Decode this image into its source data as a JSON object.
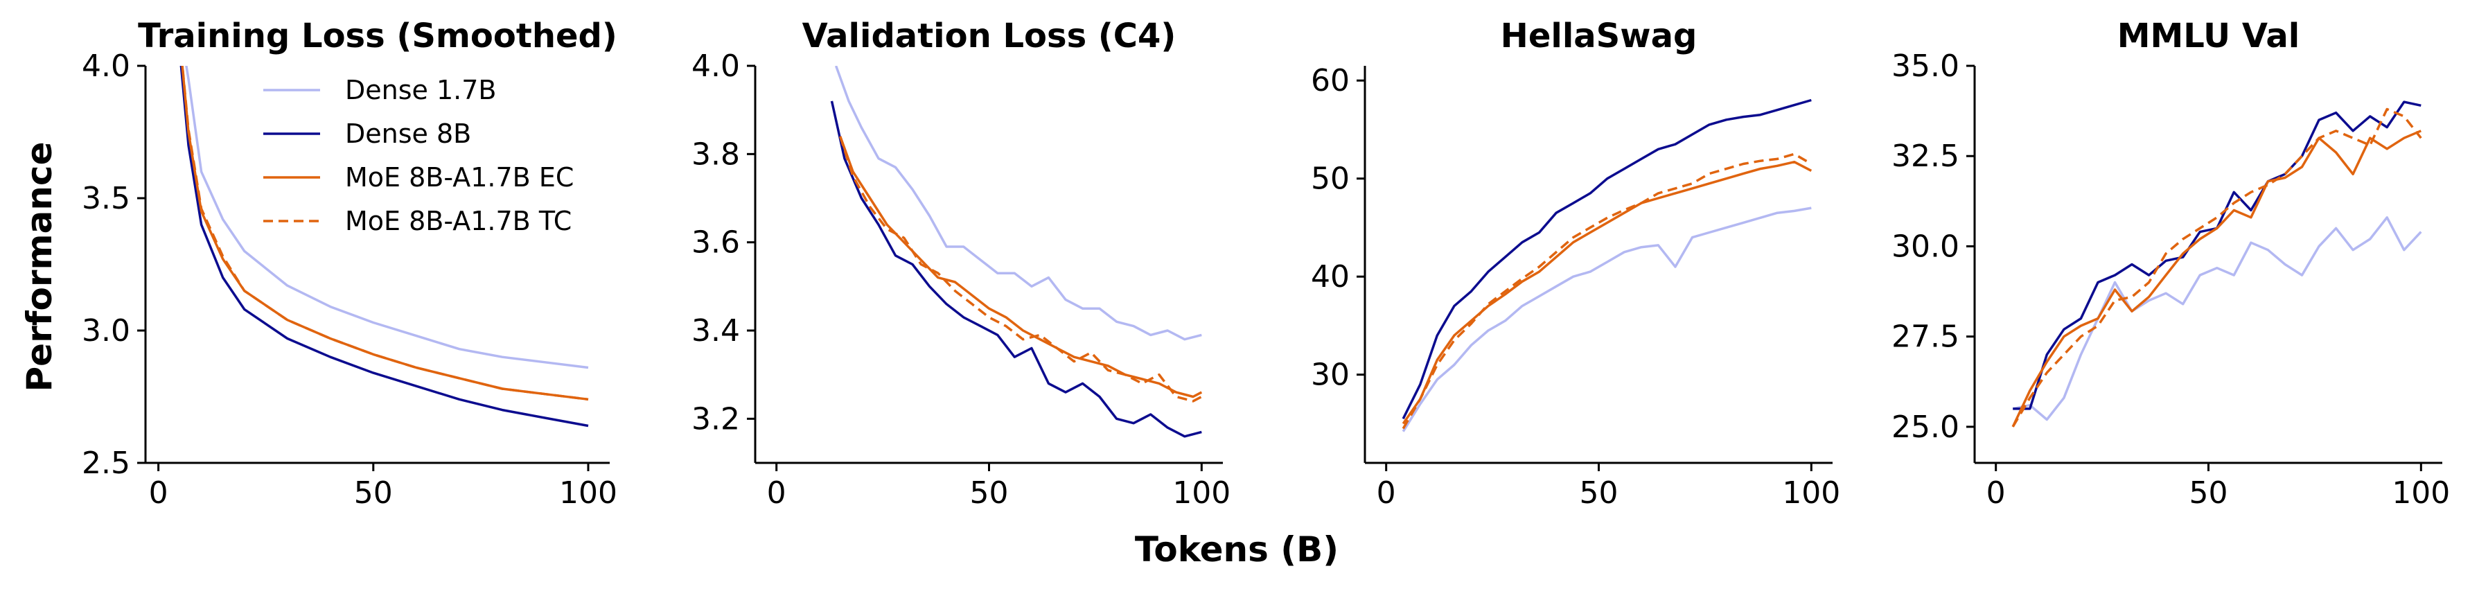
{
  "figure": {
    "ylabel": "Performance",
    "xlabel": "Tokens (B)"
  },
  "legend": {
    "placement": "upper-right of first panel",
    "entries": [
      {
        "label": "Dense 1.7B",
        "color": "#b3b8f2",
        "style": "solid"
      },
      {
        "label": "Dense 8B",
        "color": "#0c0c8f",
        "style": "solid"
      },
      {
        "label": "MoE 8B-A1.7B EC",
        "color": "#e0640f",
        "style": "solid"
      },
      {
        "label": "MoE 8B-A1.7B TC",
        "color": "#e0640f",
        "style": "dashed"
      }
    ]
  },
  "chart_data": [
    {
      "type": "line",
      "title": "Training Loss (Smoothed)",
      "xlim": [
        -3,
        105
      ],
      "ylim": [
        2.5,
        4.0
      ],
      "xticks": [
        "0",
        "50",
        "100"
      ],
      "xtick_values": [
        0,
        50,
        100
      ],
      "yticks": [
        "2.5",
        "3.0",
        "3.5",
        "4.0"
      ],
      "ytick_values": [
        2.5,
        3.0,
        3.5,
        4.0
      ],
      "grid": false,
      "series": [
        {
          "name": "Dense 1.7B",
          "x": [
            5,
            7,
            10,
            15,
            20,
            30,
            40,
            50,
            60,
            70,
            80,
            90,
            100
          ],
          "y": [
            4.15,
            3.95,
            3.6,
            3.42,
            3.3,
            3.17,
            3.09,
            3.03,
            2.98,
            2.93,
            2.9,
            2.88,
            2.86
          ]
        },
        {
          "name": "Dense 8B",
          "x": [
            5,
            7,
            10,
            15,
            20,
            30,
            40,
            50,
            60,
            70,
            80,
            90,
            100
          ],
          "y": [
            4.05,
            3.7,
            3.4,
            3.2,
            3.08,
            2.97,
            2.9,
            2.84,
            2.79,
            2.74,
            2.7,
            2.67,
            2.64
          ]
        },
        {
          "name": "MoE 8B-A1.7B EC",
          "x": [
            5,
            7,
            10,
            15,
            20,
            30,
            40,
            50,
            60,
            70,
            80,
            90,
            100
          ],
          "y": [
            4.1,
            3.75,
            3.45,
            3.27,
            3.15,
            3.04,
            2.97,
            2.91,
            2.86,
            2.82,
            2.78,
            2.76,
            2.74
          ]
        },
        {
          "name": "MoE 8B-A1.7B TC",
          "x": [
            5,
            7,
            10,
            15,
            20,
            30,
            40,
            50,
            60,
            70,
            80,
            90,
            100
          ],
          "y": [
            4.1,
            3.76,
            3.46,
            3.28,
            3.15,
            3.04,
            2.97,
            2.91,
            2.86,
            2.82,
            2.78,
            2.76,
            2.74
          ]
        }
      ]
    },
    {
      "type": "line",
      "title": "Validation Loss (C4)",
      "xlim": [
        -5,
        105
      ],
      "ylim": [
        3.1,
        4.0
      ],
      "xticks": [
        "0",
        "50",
        "100"
      ],
      "xtick_values": [
        0,
        50,
        100
      ],
      "yticks": [
        "3.2",
        "3.4",
        "3.6",
        "3.8",
        "4.0"
      ],
      "ytick_values": [
        3.2,
        3.4,
        3.6,
        3.8,
        4.0
      ],
      "grid": false,
      "series": [
        {
          "name": "Dense 1.7B",
          "x": [
            14,
            17,
            20,
            24,
            28,
            32,
            36,
            40,
            44,
            48,
            52,
            56,
            60,
            64,
            68,
            72,
            76,
            80,
            84,
            88,
            92,
            96,
            100
          ],
          "y": [
            4.0,
            3.92,
            3.86,
            3.79,
            3.77,
            3.72,
            3.66,
            3.59,
            3.59,
            3.56,
            3.53,
            3.53,
            3.5,
            3.52,
            3.47,
            3.45,
            3.45,
            3.42,
            3.41,
            3.39,
            3.4,
            3.38,
            3.39
          ]
        },
        {
          "name": "Dense 8B",
          "x": [
            13,
            16,
            20,
            24,
            28,
            32,
            36,
            40,
            44,
            48,
            52,
            56,
            60,
            64,
            68,
            72,
            76,
            80,
            84,
            88,
            92,
            96,
            100
          ],
          "y": [
            3.92,
            3.79,
            3.7,
            3.64,
            3.57,
            3.55,
            3.5,
            3.46,
            3.43,
            3.41,
            3.39,
            3.34,
            3.36,
            3.28,
            3.26,
            3.28,
            3.25,
            3.2,
            3.19,
            3.21,
            3.18,
            3.16,
            3.17
          ]
        },
        {
          "name": "MoE 8B-A1.7B EC",
          "x": [
            15,
            18,
            22,
            26,
            30,
            34,
            38,
            42,
            46,
            50,
            54,
            58,
            62,
            66,
            70,
            74,
            78,
            82,
            86,
            90,
            94,
            98,
            100
          ],
          "y": [
            3.84,
            3.76,
            3.7,
            3.64,
            3.6,
            3.56,
            3.52,
            3.51,
            3.48,
            3.45,
            3.43,
            3.4,
            3.38,
            3.36,
            3.34,
            3.33,
            3.32,
            3.3,
            3.29,
            3.28,
            3.26,
            3.25,
            3.26
          ]
        },
        {
          "name": "MoE 8B-A1.7B TC",
          "x": [
            15,
            18,
            22,
            26,
            30,
            34,
            38,
            42,
            46,
            50,
            54,
            58,
            62,
            66,
            70,
            74,
            78,
            82,
            86,
            90,
            94,
            98,
            100
          ],
          "y": [
            3.84,
            3.75,
            3.68,
            3.63,
            3.61,
            3.55,
            3.53,
            3.49,
            3.46,
            3.43,
            3.41,
            3.38,
            3.39,
            3.36,
            3.33,
            3.35,
            3.31,
            3.3,
            3.28,
            3.3,
            3.25,
            3.24,
            3.25
          ]
        }
      ]
    },
    {
      "type": "line",
      "title": "HellaSwag",
      "xlim": [
        -5,
        105
      ],
      "ylim": [
        21,
        61.5
      ],
      "xticks": [
        "0",
        "50",
        "100"
      ],
      "xtick_values": [
        0,
        50,
        100
      ],
      "yticks": [
        "30",
        "40",
        "50",
        "60"
      ],
      "ytick_values": [
        30,
        40,
        50,
        60
      ],
      "grid": false,
      "series": [
        {
          "name": "Dense 1.7B",
          "x": [
            4,
            8,
            12,
            16,
            20,
            24,
            28,
            32,
            36,
            40,
            44,
            48,
            52,
            56,
            60,
            64,
            68,
            72,
            76,
            80,
            84,
            88,
            92,
            96,
            100
          ],
          "y": [
            24.2,
            27,
            29.5,
            31,
            33,
            34.5,
            35.5,
            37,
            38,
            39,
            40,
            40.5,
            41.5,
            42.5,
            43,
            43.2,
            41,
            44,
            44.5,
            45,
            45.5,
            46,
            46.5,
            46.7,
            47
          ]
        },
        {
          "name": "Dense 8B",
          "x": [
            4,
            8,
            12,
            16,
            20,
            24,
            28,
            32,
            36,
            40,
            44,
            48,
            52,
            56,
            60,
            64,
            68,
            72,
            76,
            80,
            84,
            88,
            92,
            96,
            100
          ],
          "y": [
            25.5,
            29,
            34,
            37,
            38.5,
            40.5,
            42,
            43.5,
            44.5,
            46.5,
            47.5,
            48.5,
            50,
            51,
            52,
            53,
            53.5,
            54.5,
            55.5,
            56,
            56.3,
            56.5,
            57,
            57.5,
            58
          ]
        },
        {
          "name": "MoE 8B-A1.7B EC",
          "x": [
            4,
            8,
            12,
            16,
            20,
            24,
            28,
            32,
            36,
            40,
            44,
            48,
            52,
            56,
            60,
            64,
            68,
            72,
            76,
            80,
            84,
            88,
            92,
            96,
            100
          ],
          "y": [
            25,
            27.5,
            31.5,
            34,
            35.5,
            37,
            38.2,
            39.5,
            40.5,
            42,
            43.5,
            44.5,
            45.5,
            46.5,
            47.5,
            48,
            48.5,
            49,
            49.5,
            50,
            50.5,
            51,
            51.3,
            51.7,
            50.8
          ]
        },
        {
          "name": "MoE 8B-A1.7B TC",
          "x": [
            4,
            8,
            12,
            16,
            20,
            24,
            28,
            32,
            36,
            40,
            44,
            48,
            52,
            56,
            60,
            64,
            68,
            72,
            76,
            80,
            84,
            88,
            92,
            96,
            100
          ],
          "y": [
            24.5,
            27.5,
            31,
            33.5,
            35.2,
            37.2,
            38.5,
            39.8,
            41,
            42.5,
            44,
            45,
            46,
            46.8,
            47.5,
            48.5,
            49,
            49.5,
            50.5,
            51,
            51.5,
            51.8,
            52,
            52.5,
            51.5
          ]
        }
      ]
    },
    {
      "type": "line",
      "title": "MMLU Val",
      "xlim": [
        -5,
        105
      ],
      "ylim": [
        24.0,
        35.0
      ],
      "xticks": [
        "0",
        "50",
        "100"
      ],
      "xtick_values": [
        0,
        50,
        100
      ],
      "yticks": [
        "25.0",
        "27.5",
        "30.0",
        "32.5",
        "35.0"
      ],
      "ytick_values": [
        25.0,
        27.5,
        30.0,
        32.5,
        35.0
      ],
      "grid": false,
      "series": [
        {
          "name": "Dense 1.7B",
          "x": [
            4,
            8,
            12,
            16,
            20,
            24,
            28,
            32,
            36,
            40,
            44,
            48,
            52,
            56,
            60,
            64,
            68,
            72,
            76,
            80,
            84,
            88,
            92,
            96,
            100
          ],
          "y": [
            25.5,
            25.6,
            25.2,
            25.8,
            27.0,
            28.0,
            29.0,
            28.2,
            28.5,
            28.7,
            28.4,
            29.2,
            29.4,
            29.2,
            30.1,
            29.9,
            29.5,
            29.2,
            30.0,
            30.5,
            29.9,
            30.2,
            30.8,
            29.9,
            30.4
          ]
        },
        {
          "name": "Dense 8B",
          "x": [
            4,
            8,
            12,
            16,
            20,
            24,
            28,
            32,
            36,
            40,
            44,
            48,
            52,
            56,
            60,
            64,
            68,
            72,
            76,
            80,
            84,
            88,
            92,
            96,
            100
          ],
          "y": [
            25.5,
            25.5,
            27.0,
            27.7,
            28.0,
            29.0,
            29.2,
            29.5,
            29.2,
            29.6,
            29.7,
            30.4,
            30.5,
            31.5,
            31.0,
            31.8,
            32.0,
            32.5,
            33.5,
            33.7,
            33.2,
            33.6,
            33.3,
            34.0,
            33.9
          ]
        },
        {
          "name": "MoE 8B-A1.7B EC",
          "x": [
            4,
            8,
            12,
            16,
            20,
            24,
            28,
            32,
            36,
            40,
            44,
            48,
            52,
            56,
            60,
            64,
            68,
            72,
            76,
            80,
            84,
            88,
            92,
            96,
            100
          ],
          "y": [
            25.0,
            26.0,
            26.8,
            27.5,
            27.8,
            28.0,
            28.8,
            28.2,
            28.6,
            29.2,
            29.8,
            30.2,
            30.5,
            31.0,
            30.8,
            31.8,
            31.9,
            32.2,
            33.0,
            32.6,
            32.0,
            33.0,
            32.7,
            33.0,
            33.2
          ]
        },
        {
          "name": "MoE 8B-A1.7B TC",
          "x": [
            4,
            8,
            12,
            16,
            20,
            24,
            28,
            32,
            36,
            40,
            44,
            48,
            52,
            56,
            60,
            64,
            68,
            72,
            76,
            80,
            84,
            88,
            92,
            96,
            100
          ],
          "y": [
            25.0,
            25.8,
            26.5,
            27.0,
            27.5,
            27.8,
            28.5,
            28.6,
            29.0,
            29.8,
            30.2,
            30.5,
            30.8,
            31.2,
            31.5,
            31.7,
            32.0,
            32.5,
            33.0,
            33.2,
            33.0,
            32.8,
            33.8,
            33.6,
            33.0
          ]
        }
      ]
    }
  ]
}
